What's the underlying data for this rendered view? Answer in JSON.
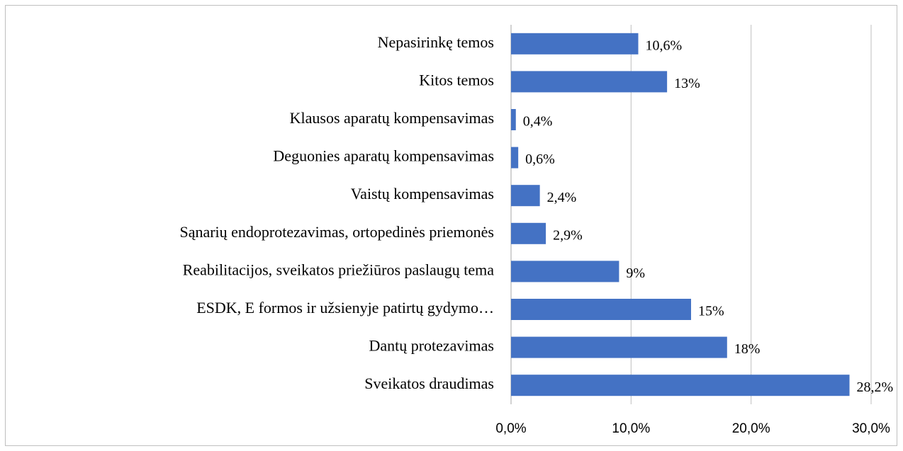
{
  "chart_data": {
    "type": "bar",
    "orientation": "horizontal",
    "categories": [
      "Nepasirinkę temos",
      "Kitos temos",
      "Klausos aparatų  kompensavimas",
      "Deguonies aparatų kompensavimas",
      "Vaistų kompensavimas",
      "Sąnarių endoprotezavimas, ortopedinės priemonės",
      "Reabilitacijos, sveikatos priežiūros paslaugų tema",
      "ESDK, E formos ir užsienyje patirtų gydymo…",
      "Dantų protezavimas",
      "Sveikatos draudimas"
    ],
    "values": [
      10.6,
      13,
      0.4,
      0.6,
      2.4,
      2.9,
      9,
      15,
      18,
      28.2
    ],
    "value_labels": [
      "10,6%",
      "13%",
      "0,4%",
      "0,6%",
      "2,4%",
      "2,9%",
      "9%",
      "15%",
      "18%",
      "28,2%"
    ],
    "color": "#4472c4",
    "xlim": [
      0,
      30
    ],
    "xticks": [
      {
        "value": 0,
        "label": "0,0%"
      },
      {
        "value": 10,
        "label": "10,0%"
      },
      {
        "value": 20,
        "label": "20,0%"
      },
      {
        "value": 30,
        "label": "30,0%"
      }
    ],
    "grid": true
  }
}
